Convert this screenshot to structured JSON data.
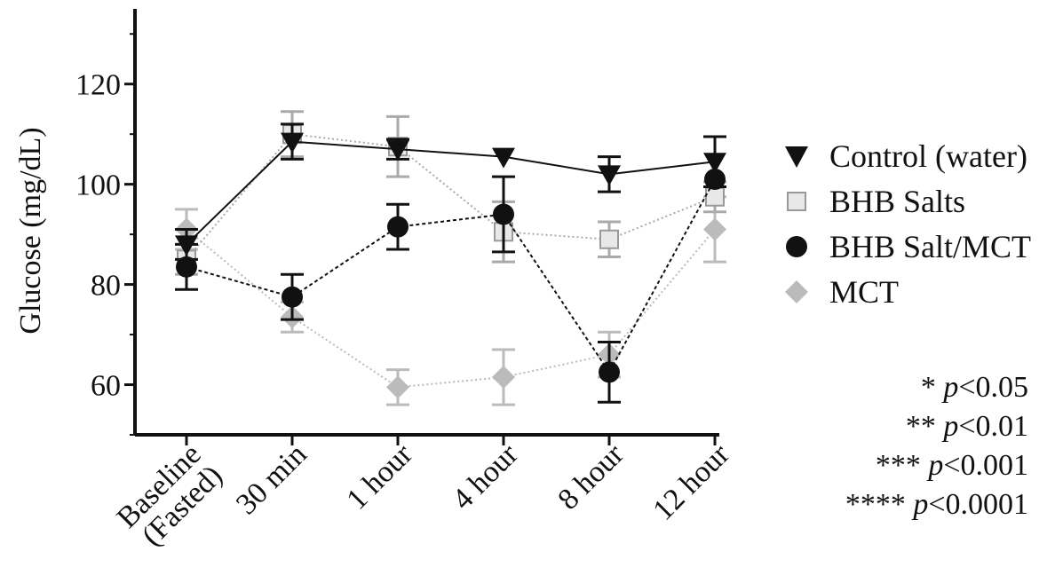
{
  "chart_data": {
    "type": "line",
    "xlabel": "",
    "ylabel": "Glucose (mg/dL)",
    "categories": [
      "Baseline (Fasted)",
      "30 min",
      "1 hour",
      "4 hour",
      "8 hour",
      "12 hour"
    ],
    "ylim": [
      50,
      135
    ],
    "yticks": [
      60,
      80,
      100,
      120
    ],
    "grid": false,
    "legend_position": "right",
    "series": [
      {
        "name": "Control (water)",
        "marker": "triangle-down",
        "color": "#111111",
        "line": "solid",
        "values": [
          88,
          108.5,
          107,
          105.5,
          102,
          104.5
        ],
        "errors": [
          3,
          3.5,
          2,
          0,
          3.5,
          5
        ]
      },
      {
        "name": "BHB Salts",
        "marker": "square",
        "color": "#aaaaaa",
        "line": "dotted",
        "values": [
          85,
          110,
          107.5,
          90.5,
          89,
          97.5
        ],
        "errors": [
          3,
          4.5,
          6,
          6,
          3.5,
          3
        ]
      },
      {
        "name": "BHB Salt/MCT",
        "marker": "circle",
        "color": "#111111",
        "line": "dashed",
        "values": [
          83.5,
          77.5,
          91.5,
          94,
          62.5,
          101
        ],
        "errors": [
          4.5,
          4.5,
          4.5,
          7.5,
          6,
          0
        ]
      },
      {
        "name": "MCT",
        "marker": "diamond",
        "color": "#bbbbbb",
        "line": "dotted",
        "values": [
          91,
          73.5,
          59.5,
          61.5,
          66,
          91
        ],
        "errors": [
          4,
          3,
          3.5,
          5.5,
          4.5,
          6.5
        ]
      }
    ]
  },
  "notes": [
    {
      "stars": "* ",
      "p": "p",
      "text": "<0.05"
    },
    {
      "stars": "** ",
      "p": "p",
      "text": "<0.01"
    },
    {
      "stars": "*** ",
      "p": "p",
      "text": "<0.001"
    },
    {
      "stars": "**** ",
      "p": "p",
      "text": "<0.0001"
    }
  ]
}
